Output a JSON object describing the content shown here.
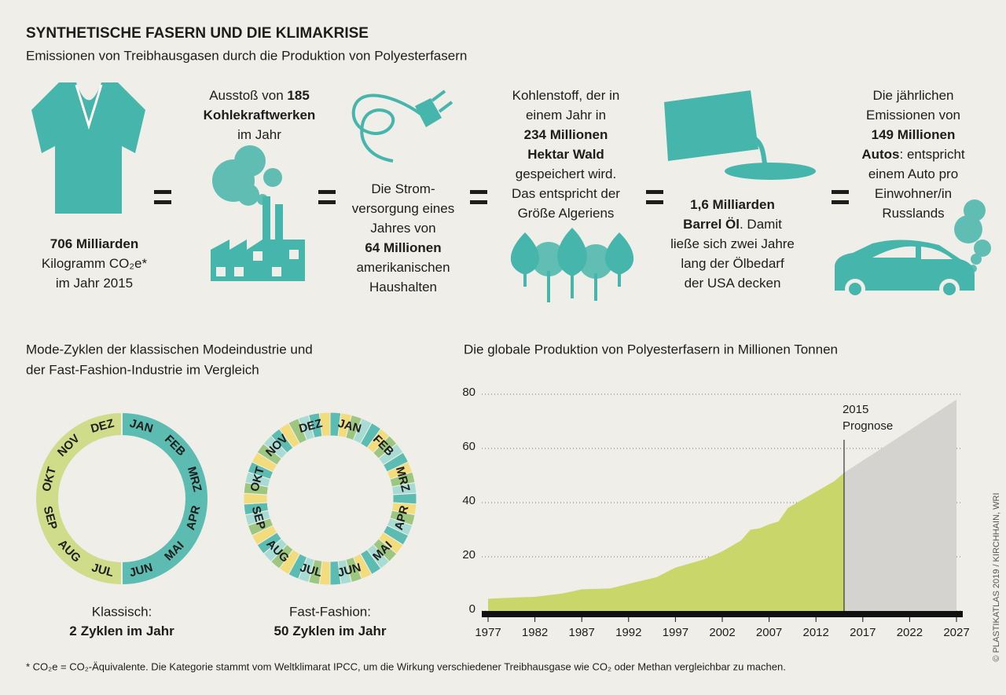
{
  "header": {
    "title": "SYNTHETISCHE FASERN UND DIE KLIMAKRISE",
    "subtitle": "Emissionen von Treibhausgasen durch die Produktion von Polyesterfasern"
  },
  "equivalences": [
    {
      "lines": [
        [
          {
            "text": "706 Milliarden",
            "bold": true
          }
        ],
        [
          {
            "text": "Kilogramm CO₂e*"
          }
        ],
        [
          {
            "text": "im Jahr 2015"
          }
        ]
      ]
    },
    {
      "lines": [
        [
          {
            "text": "Ausstoß von "
          },
          {
            "text": "185",
            "bold": true
          }
        ],
        [
          {
            "text": "Kohlekraftwerken",
            "bold": true
          }
        ],
        [
          {
            "text": "im Jahr"
          }
        ]
      ]
    },
    {
      "lines": [
        [
          {
            "text": "Die Strom-"
          }
        ],
        [
          {
            "text": "versorgung eines"
          }
        ],
        [
          {
            "text": "Jahres von"
          }
        ],
        [
          {
            "text": "64 Millionen",
            "bold": true
          }
        ],
        [
          {
            "text": "amerikanischen"
          }
        ],
        [
          {
            "text": "Haushalten"
          }
        ]
      ]
    },
    {
      "lines": [
        [
          {
            "text": "Kohlenstoff, der in"
          }
        ],
        [
          {
            "text": "einem Jahr in"
          }
        ],
        [
          {
            "text": "234 Millionen",
            "bold": true
          }
        ],
        [
          {
            "text": "Hektar Wald",
            "bold": true
          }
        ],
        [
          {
            "text": "gespeichert wird."
          }
        ],
        [
          {
            "text": "Das entspricht der"
          }
        ],
        [
          {
            "text": "Größe Algeriens"
          }
        ]
      ]
    },
    {
      "lines": [
        [
          {
            "text": "1,6 Milliarden",
            "bold": true
          }
        ],
        [
          {
            "text": "Barrel Öl",
            "bold": true
          },
          {
            "text": ". Damit"
          }
        ],
        [
          {
            "text": "ließe sich zwei Jahre"
          }
        ],
        [
          {
            "text": "lang der Ölbedarf"
          }
        ],
        [
          {
            "text": "der USA decken"
          }
        ]
      ]
    },
    {
      "lines": [
        [
          {
            "text": "Die jährlichen"
          }
        ],
        [
          {
            "text": "Emissionen von"
          }
        ],
        [
          {
            "text": "149 Millionen",
            "bold": true
          }
        ],
        [
          {
            "text": "Autos",
            "bold": true
          },
          {
            "text": ": entspricht"
          }
        ],
        [
          {
            "text": "einem Auto pro"
          }
        ],
        [
          {
            "text": "Einwohner/in"
          }
        ],
        [
          {
            "text": "Russlands"
          }
        ]
      ]
    }
  ],
  "cycles": {
    "title": [
      "Mode-Zyklen der klassischen Modeindustrie und",
      "der Fast-Fashion-Industrie im Vergleich"
    ],
    "months": [
      "JAN",
      "FEB",
      "MRZ",
      "APR",
      "MAI",
      "JUN",
      "JUL",
      "AUG",
      "SEP",
      "OKT",
      "NOV",
      "DEZ"
    ],
    "rings": [
      {
        "label": "Klassisch:",
        "count": 2,
        "unit": "Zyklen im Jahr",
        "colors": [
          "#5cbcb2",
          "#cfdc8a"
        ]
      },
      {
        "label": "Fast-Fashion:",
        "count": 50,
        "unit": "Zyklen im Jahr",
        "colors": [
          "#5cbcb2",
          "#f3dc7c",
          "#9dc680",
          "#a9dbd5"
        ]
      }
    ]
  },
  "chart_data": {
    "type": "area",
    "title": "Die globale Produktion von Polyesterfasern in Millionen Tonnen",
    "x": [
      1977,
      1980,
      1982,
      1985,
      1987,
      1990,
      1992,
      1995,
      1997,
      2000,
      2002,
      2004,
      2005,
      2006,
      2007,
      2008,
      2009,
      2010,
      2012,
      2014,
      2015,
      2027
    ],
    "series": [
      {
        "color": "#c9d76a",
        "values": [
          4.5,
          5,
          5.2,
          6.5,
          8,
          8.3,
          10,
          12.5,
          16,
          19,
          22,
          26,
          30,
          30.5,
          32,
          33,
          38,
          40,
          44,
          48,
          51,
          null
        ]
      },
      {
        "color": "#d5d3cf",
        "values": [
          null,
          null,
          null,
          null,
          null,
          null,
          null,
          null,
          null,
          null,
          null,
          null,
          null,
          null,
          null,
          null,
          null,
          null,
          null,
          null,
          51,
          78
        ]
      }
    ],
    "xlim": [
      1977,
      2027
    ],
    "xticks": [
      1977,
      1982,
      1987,
      1992,
      1997,
      2002,
      2007,
      2012,
      2017,
      2022,
      2027
    ],
    "ylim": [
      0,
      80
    ],
    "yticks": [
      0,
      20,
      40,
      60,
      80
    ],
    "grid": true,
    "annotation": {
      "x": 2015,
      "lines": [
        "2015",
        "Prognose"
      ]
    }
  },
  "footnote": "* CO₂e = CO₂-Äquivalente. Die Kategorie stammt vom Weltklimarat IPCC, um die Wirkung verschiedener Treibhausgase wie CO₂ oder Methan vergleichbar zu machen.",
  "credit": "© PLASTIKATLAS 2019 / KIRCHHAIN, WRI"
}
